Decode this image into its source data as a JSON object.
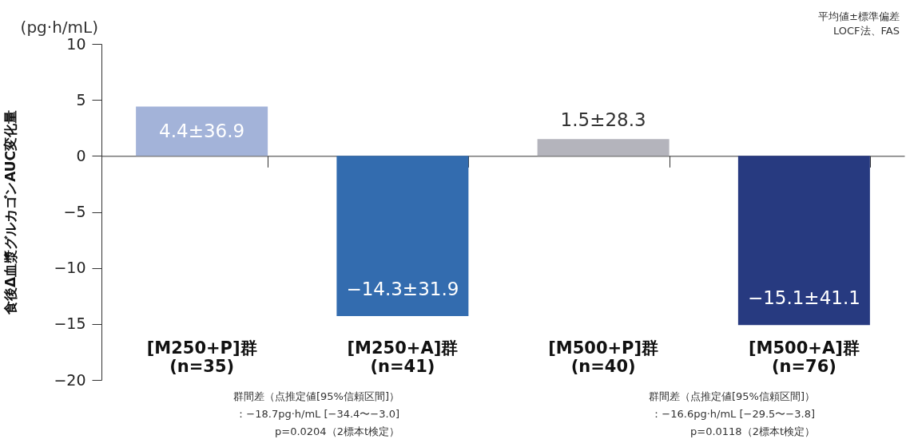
{
  "chart_data": {
    "type": "bar",
    "ylabel": "食後Δ血漿グルカゴンAUC変化量",
    "categories": [
      "[M250+P]群 (n=35)",
      "[M250+A]群 (n=41)",
      "[M500+P]群 (n=40)",
      "[M500+A]群 (n=76)"
    ],
    "values": [
      4.4,
      -14.3,
      1.5,
      -15.1
    ],
    "colors": [
      "#a3b3d9",
      "#336caf",
      "#b4b4bc",
      "#273a80"
    ],
    "value_labels": [
      "4.4±36.9",
      "−14.3±31.9",
      "1.5±28.3",
      "−15.1±41.1"
    ],
    "ylim": [
      -20,
      10
    ],
    "yticks": [
      -20,
      -15,
      -10,
      -5,
      0,
      5,
      10
    ],
    "annotations": [
      "(pg·h/mL)",
      "平均値±標準偏差",
      "LOCF法、FAS",
      "群間差（点推定値[95%信頼区間]）",
      "：−18.7pg·h/mL [−34.4〜−3.0]",
      "p=0.0204（2標本t検定）",
      "群間差（点推定値[95%信頼区間]）",
      "：−16.6pg·h/mL [−29.5〜−3.8]",
      "p=0.0118（2標本t検定）"
    ]
  }
}
